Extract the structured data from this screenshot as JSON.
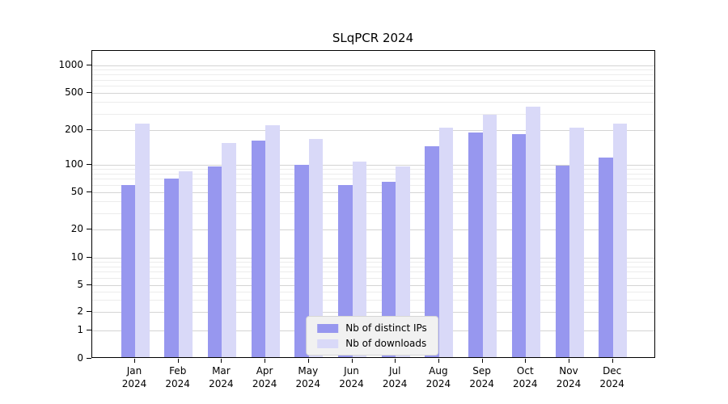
{
  "chart_data": {
    "type": "bar",
    "title": "SLqPCR 2024",
    "x": {
      "months": [
        "Jan",
        "Feb",
        "Mar",
        "Apr",
        "May",
        "Jun",
        "Jul",
        "Aug",
        "Sep",
        "Oct",
        "Nov",
        "Dec"
      ],
      "year": "2024"
    },
    "series": [
      {
        "name": "Nb of distinct IPs",
        "color": "#9797ef",
        "values": [
          58,
          68,
          92,
          158,
          95,
          58,
          62,
          140,
          185,
          178,
          94,
          112
        ]
      },
      {
        "name": "Nb of downloads",
        "color": "#d9d9f8",
        "values": [
          225,
          82,
          150,
          215,
          163,
          103,
          93,
          205,
          280,
          340,
          205,
          225
        ]
      }
    ],
    "y_ticks": [
      0,
      1,
      2,
      5,
      10,
      20,
      50,
      100,
      200,
      500,
      1000
    ],
    "y_scale": "log",
    "ylim": [
      0,
      1400
    ],
    "grid": true,
    "legend_position": "bottom-center"
  }
}
